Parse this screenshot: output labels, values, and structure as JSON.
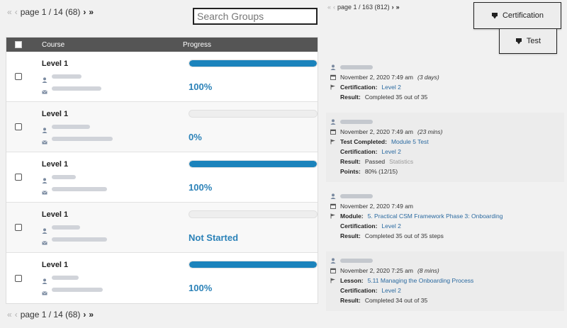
{
  "pager_top": {
    "first": "«",
    "prev": "‹",
    "text": "page 1 / 14 (68)",
    "next": "›",
    "last": "»"
  },
  "pager_bottom": {
    "first": "«",
    "prev": "‹",
    "text": "page 1 / 14 (68)",
    "next": "›",
    "last": "»"
  },
  "pager_activity": {
    "first": "«",
    "prev": "‹",
    "text": "page 1 / 163 (812)",
    "next": "›",
    "last": "»"
  },
  "search": {
    "placeholder": "Search Groups"
  },
  "buttons": {
    "certification": "Certification",
    "test": "Test"
  },
  "table": {
    "headers": {
      "course": "Course",
      "progress": "Progress"
    },
    "rows": [
      {
        "course": "Level 1",
        "progress_label": "100%",
        "progress": 1.0
      },
      {
        "course": "Level 1",
        "progress_label": "0%",
        "progress": 0.0
      },
      {
        "course": "Level 1",
        "progress_label": "100%",
        "progress": 1.0
      },
      {
        "course": "Level 1",
        "progress_label": "Not Started",
        "progress": 0.0
      },
      {
        "course": "Level 1",
        "progress_label": "100%",
        "progress": 1.0
      }
    ]
  },
  "activity": [
    {
      "date": "November 2, 2020 7:49 am",
      "duration": "(3 days)",
      "lines": [
        {
          "label": "Certification:",
          "value": "Level 2",
          "link": true
        },
        {
          "label": "Result:",
          "value": "Completed 35 out of 35",
          "link": false
        }
      ]
    },
    {
      "date": "November 2, 2020 7:49 am",
      "duration": "(23 mins)",
      "lines": [
        {
          "label": "Test Completed:",
          "value": "Module 5 Test",
          "link": true
        },
        {
          "label": "Certification:",
          "value": "Level 2",
          "link": true
        },
        {
          "label": "Result:",
          "value": "Passed",
          "extra": "Statistics",
          "link": false
        },
        {
          "label": "Points:",
          "value": "80% (12/15)",
          "link": false
        }
      ]
    },
    {
      "date": "November 2, 2020 7:49 am",
      "duration": "",
      "lines": [
        {
          "label": "Module:",
          "value": "5. Practical CSM Framework Phase 3: Onboarding",
          "link": true
        },
        {
          "label": "Certification:",
          "value": "Level 2",
          "link": true
        },
        {
          "label": "Result:",
          "value": "Completed 35 out of 35 steps",
          "link": false
        }
      ]
    },
    {
      "date": "November 2, 2020 7:25 am",
      "duration": "(8 mins)",
      "lines": [
        {
          "label": "Lesson:",
          "value": "5.11 Managing the Onboarding Process",
          "link": true
        },
        {
          "label": "Certification:",
          "value": "Level 2",
          "link": true
        },
        {
          "label": "Result:",
          "value": "Completed 34 out of 35",
          "link": false
        }
      ]
    }
  ],
  "colors": {
    "accent": "#1b83bc",
    "header_bg": "#555555",
    "link": "#2b6aa0"
  }
}
